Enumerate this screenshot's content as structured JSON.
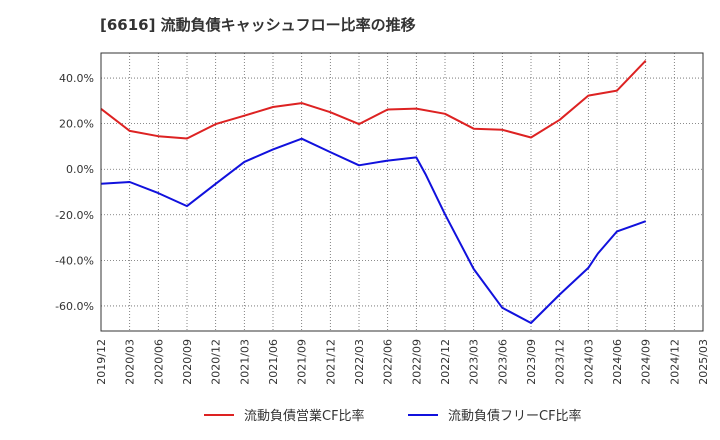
{
  "chart_data": {
    "type": "line",
    "title": "[6616]  流動負債キャッシュフロー比率の推移",
    "xlabel": "",
    "ylabel": "",
    "x": [
      "2019/12",
      "2020/03",
      "2020/06",
      "2020/09",
      "2020/12",
      "2021/03",
      "2021/06",
      "2021/09",
      "2021/12",
      "2022/03",
      "2022/06",
      "2022/09",
      "2022/10",
      "2022/12",
      "2023/03",
      "2023/06",
      "2023/09",
      "2023/12",
      "2024/03",
      "2024/04",
      "2024/06",
      "2024/09"
    ],
    "x_ticks": [
      "2019/12",
      "2020/03",
      "2020/06",
      "2020/09",
      "2020/12",
      "2021/03",
      "2021/06",
      "2021/09",
      "2021/12",
      "2022/03",
      "2022/06",
      "2022/09",
      "2022/12",
      "2023/03",
      "2023/06",
      "2023/09",
      "2023/12",
      "2024/03",
      "2024/06",
      "2024/09",
      "2024/12",
      "2025/03"
    ],
    "y_ticks": [
      "40.0%",
      "20.0%",
      "0.0%",
      "-20.0%",
      "-40.0%",
      "-60.0%"
    ],
    "y_tick_values": [
      40,
      20,
      0,
      -20,
      -40,
      -60
    ],
    "ylim": [
      -71,
      51
    ],
    "xlim": [
      "2019/12",
      "2025/03"
    ],
    "grid": true,
    "legend_position": "bottom",
    "series": [
      {
        "name": "流動負債営業CF比率",
        "color": "#dd2222",
        "points": [
          [
            "2019/12",
            26.5
          ],
          [
            "2020/03",
            16.8
          ],
          [
            "2020/06",
            14.5
          ],
          [
            "2020/09",
            13.5
          ],
          [
            "2020/12",
            19.8
          ],
          [
            "2021/03",
            23.5
          ],
          [
            "2021/06",
            27.3
          ],
          [
            "2021/09",
            29.0
          ],
          [
            "2021/12",
            25.0
          ],
          [
            "2022/03",
            19.8
          ],
          [
            "2022/06",
            26.2
          ],
          [
            "2022/09",
            26.6
          ],
          [
            "2022/12",
            24.3
          ],
          [
            "2023/03",
            17.8
          ],
          [
            "2023/06",
            17.3
          ],
          [
            "2023/09",
            13.9
          ],
          [
            "2023/12",
            21.7
          ],
          [
            "2024/03",
            32.3
          ],
          [
            "2024/06",
            34.5
          ],
          [
            "2024/09",
            47.6
          ]
        ]
      },
      {
        "name": "流動負債フリーCF比率",
        "color": "#1111dd",
        "points": [
          [
            "2019/12",
            -6.4
          ],
          [
            "2020/03",
            -5.6
          ],
          [
            "2020/06",
            -10.5
          ],
          [
            "2020/09",
            -16.2
          ],
          [
            "2020/12",
            -6.4
          ],
          [
            "2021/03",
            3.2
          ],
          [
            "2021/06",
            8.7
          ],
          [
            "2021/09",
            13.4
          ],
          [
            "2021/12",
            7.5
          ],
          [
            "2022/03",
            1.7
          ],
          [
            "2022/06",
            3.8
          ],
          [
            "2022/09",
            5.2
          ],
          [
            "2022/10",
            -2.5
          ],
          [
            "2022/12",
            -19.8
          ],
          [
            "2023/03",
            -43.8
          ],
          [
            "2023/06",
            -60.8
          ],
          [
            "2023/09",
            -67.5
          ],
          [
            "2023/12",
            -55.0
          ],
          [
            "2024/03",
            -43.3
          ],
          [
            "2024/04",
            -37.0
          ],
          [
            "2024/06",
            -27.3
          ],
          [
            "2024/09",
            -22.8
          ]
        ]
      }
    ]
  }
}
